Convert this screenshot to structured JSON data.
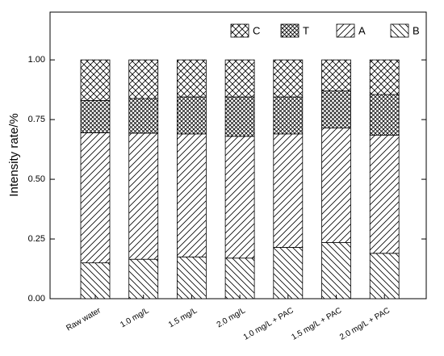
{
  "chart_data": {
    "type": "stacked-bar",
    "ylabel": "Intensity rate/%",
    "categories": [
      "Raw water",
      "1.0 mg/L",
      "1.5 mg/L",
      "2.0 mg/L",
      "1.0 mg/L + PAC",
      "1.5 mg/L + PAC",
      "2.0 mg/L + PAC"
    ],
    "series": [
      {
        "name": "B",
        "color": "#000000",
        "hatch": "\\",
        "values": [
          0.15,
          0.165,
          0.175,
          0.17,
          0.215,
          0.235,
          0.19
        ]
      },
      {
        "name": "A",
        "color": "#000000",
        "hatch": "/",
        "values": [
          0.545,
          0.528,
          0.515,
          0.51,
          0.475,
          0.48,
          0.495
        ]
      },
      {
        "name": "T",
        "color": "#000000",
        "hatch": "xx",
        "values": [
          0.135,
          0.145,
          0.155,
          0.165,
          0.155,
          0.155,
          0.17
        ]
      },
      {
        "name": "C",
        "color": "#000000",
        "hatch": "x",
        "values": [
          0.17,
          0.162,
          0.155,
          0.155,
          0.155,
          0.13,
          0.145
        ]
      }
    ],
    "ylim": [
      0,
      1.2
    ],
    "yticks": [
      {
        "value": 0,
        "label": "0.00"
      },
      {
        "value": 0.25,
        "label": "0.25"
      },
      {
        "value": 0.5,
        "label": "0.50"
      },
      {
        "value": 0.75,
        "label": "0.75"
      },
      {
        "value": 1,
        "label": "1.00"
      }
    ],
    "legend": "top-right"
  }
}
